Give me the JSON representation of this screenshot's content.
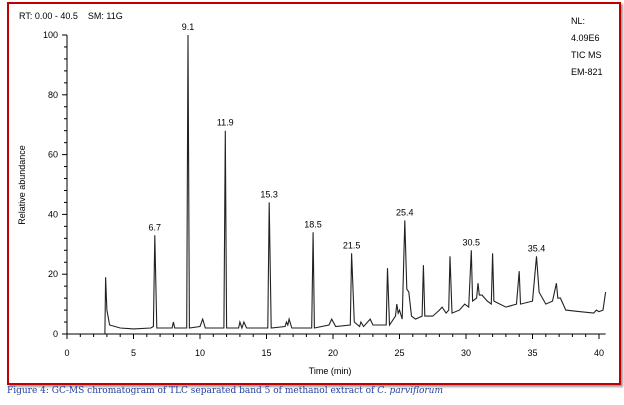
{
  "chart_data": {
    "type": "line",
    "header_left": "RT: 0.00 - 40.5    SM: 11G",
    "header_right": [
      "NL:",
      "4.09E6",
      "TIC MS",
      "EM-821"
    ],
    "xlabel": "Time (min)",
    "ylabel": "Relative abundance",
    "xlim": [
      0,
      40.5
    ],
    "ylim": [
      0,
      100
    ],
    "xticks": [
      0,
      5,
      10,
      15,
      20,
      25,
      30,
      35,
      40
    ],
    "yticks": [
      0,
      20,
      40,
      60,
      80,
      100
    ],
    "grid": false,
    "peak_labels": [
      {
        "label": "6.7",
        "x": 6.6,
        "y": 33
      },
      {
        "label": "9.1",
        "x": 9.1,
        "y": 100
      },
      {
        "label": "11.9",
        "x": 11.9,
        "y": 68
      },
      {
        "label": "15.3",
        "x": 15.2,
        "y": 44
      },
      {
        "label": "18.5",
        "x": 18.5,
        "y": 34
      },
      {
        "label": "21.5",
        "x": 21.4,
        "y": 27
      },
      {
        "label": "25.4",
        "x": 25.4,
        "y": 38
      },
      {
        "label": "30.5",
        "x": 30.4,
        "y": 28
      },
      {
        "label": "35.4",
        "x": 35.3,
        "y": 26
      }
    ],
    "trace": [
      [
        2.85,
        0
      ],
      [
        2.9,
        19
      ],
      [
        3.0,
        8
      ],
      [
        3.2,
        3
      ],
      [
        4,
        2
      ],
      [
        5,
        1.7
      ],
      [
        6.3,
        2
      ],
      [
        6.5,
        2.5
      ],
      [
        6.6,
        33
      ],
      [
        6.75,
        2
      ],
      [
        7.9,
        2
      ],
      [
        8.0,
        4
      ],
      [
        8.1,
        2
      ],
      [
        9.0,
        2
      ],
      [
        9.1,
        100
      ],
      [
        9.2,
        2
      ],
      [
        10.0,
        2.5
      ],
      [
        10.2,
        5
      ],
      [
        10.4,
        2
      ],
      [
        11.8,
        2
      ],
      [
        11.9,
        68
      ],
      [
        12.0,
        2
      ],
      [
        12.9,
        2
      ],
      [
        13.0,
        4
      ],
      [
        13.15,
        2
      ],
      [
        13.3,
        4
      ],
      [
        13.5,
        2
      ],
      [
        15.1,
        2
      ],
      [
        15.2,
        44
      ],
      [
        15.35,
        2
      ],
      [
        16.4,
        2.5
      ],
      [
        16.5,
        4
      ],
      [
        16.6,
        3
      ],
      [
        16.7,
        5
      ],
      [
        16.9,
        2
      ],
      [
        18.4,
        2
      ],
      [
        18.5,
        34
      ],
      [
        18.6,
        2
      ],
      [
        19.7,
        3
      ],
      [
        19.9,
        5
      ],
      [
        20.2,
        2.5
      ],
      [
        21.3,
        3
      ],
      [
        21.4,
        27
      ],
      [
        21.6,
        4
      ],
      [
        22.0,
        2.5
      ],
      [
        22.1,
        4
      ],
      [
        22.3,
        2.5
      ],
      [
        22.8,
        5
      ],
      [
        23,
        3
      ],
      [
        24.0,
        3
      ],
      [
        24.1,
        22
      ],
      [
        24.25,
        3
      ],
      [
        24.7,
        6
      ],
      [
        24.8,
        10
      ],
      [
        24.9,
        7
      ],
      [
        25.0,
        8
      ],
      [
        25.2,
        5
      ],
      [
        25.4,
        38
      ],
      [
        25.55,
        15
      ],
      [
        25.7,
        14
      ],
      [
        25.9,
        6
      ],
      [
        26.2,
        5
      ],
      [
        26.7,
        6
      ],
      [
        26.8,
        23
      ],
      [
        26.9,
        6
      ],
      [
        27.5,
        6
      ],
      [
        28.0,
        8
      ],
      [
        28.2,
        9
      ],
      [
        28.5,
        7
      ],
      [
        28.7,
        8
      ],
      [
        28.8,
        26
      ],
      [
        28.95,
        7
      ],
      [
        29.5,
        8
      ],
      [
        29.9,
        10
      ],
      [
        30.2,
        9
      ],
      [
        30.4,
        28
      ],
      [
        30.5,
        11
      ],
      [
        30.8,
        12
      ],
      [
        30.9,
        17
      ],
      [
        31.0,
        13
      ],
      [
        31.2,
        13
      ],
      [
        31.6,
        11
      ],
      [
        31.9,
        10
      ],
      [
        32.0,
        27
      ],
      [
        32.1,
        11
      ],
      [
        33,
        9
      ],
      [
        33.8,
        10
      ],
      [
        34.0,
        21
      ],
      [
        34.1,
        10
      ],
      [
        35.0,
        11
      ],
      [
        35.3,
        26
      ],
      [
        35.5,
        14
      ],
      [
        36.0,
        10
      ],
      [
        36.5,
        11
      ],
      [
        36.8,
        17
      ],
      [
        36.9,
        12
      ],
      [
        37.1,
        12
      ],
      [
        37.5,
        8
      ],
      [
        38.5,
        7.5
      ],
      [
        39.6,
        7
      ],
      [
        39.8,
        8
      ],
      [
        40.0,
        7.5
      ],
      [
        40.3,
        8
      ],
      [
        40.5,
        14
      ]
    ]
  },
  "caption": {
    "text": "Figure 4: GC-MS chromatogram of TLC separated band 5 of methanol extract of ",
    "species": "C. parviflorum"
  }
}
